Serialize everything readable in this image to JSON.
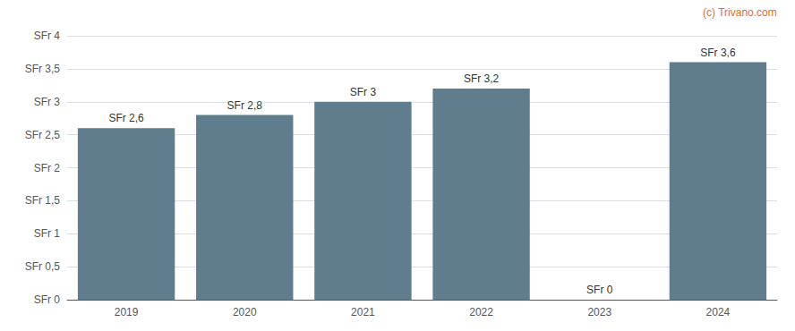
{
  "chart_data": {
    "type": "bar",
    "categories": [
      "2019",
      "2020",
      "2021",
      "2022",
      "2023",
      "2024"
    ],
    "values": [
      2.6,
      2.8,
      3.0,
      3.2,
      0.0,
      3.6
    ],
    "value_labels": [
      "SFr 2,6",
      "SFr 2,8",
      "SFr 3",
      "SFr 3,2",
      "SFr 0",
      "SFr 3,6"
    ],
    "data_labels": true,
    "color": "#5f7d8c",
    "ylim": [
      0,
      4.0
    ],
    "yticks": [
      {
        "value": 0,
        "label": "SFr 0"
      },
      {
        "value": 0.5,
        "label": "SFr 0,5"
      },
      {
        "value": 1.0,
        "label": "SFr 1"
      },
      {
        "value": 1.5,
        "label": "SFr 1,5"
      },
      {
        "value": 2.0,
        "label": "SFr 2"
      },
      {
        "value": 2.5,
        "label": "SFr 2,5"
      },
      {
        "value": 3.0,
        "label": "SFr 3"
      },
      {
        "value": 3.5,
        "label": "SFr 3,5"
      },
      {
        "value": 4.0,
        "label": "SFr 4"
      }
    ],
    "grid": true,
    "annotations": [
      {
        "text": "(c) Trivano.com",
        "color": "#e07020"
      }
    ]
  }
}
